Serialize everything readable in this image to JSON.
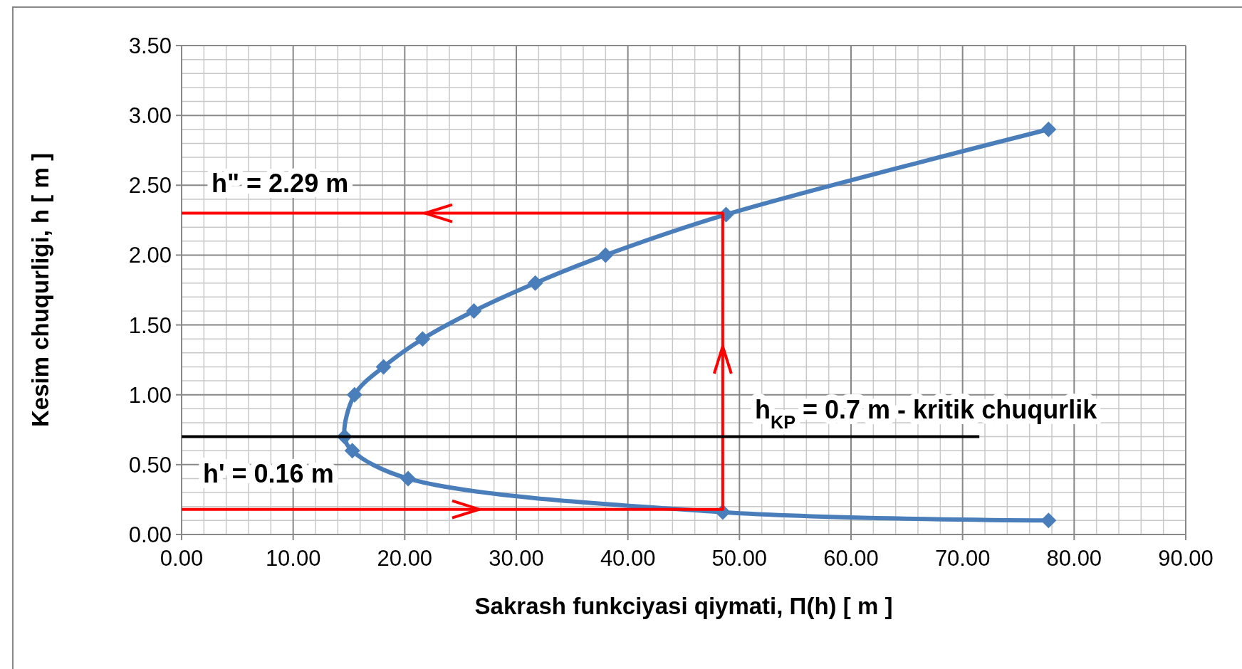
{
  "chart_data": {
    "type": "line",
    "xlabel": "Sakrash funkciyasi qiymati, Π(h) [ m ]",
    "ylabel": "Kesim chuqurligi, h [ m ]",
    "xlim": [
      0,
      90
    ],
    "ylim": [
      0,
      3.5
    ],
    "xticks": [
      {
        "value": 0,
        "label": "0.00"
      },
      {
        "value": 10,
        "label": "10.00"
      },
      {
        "value": 20,
        "label": "20.00"
      },
      {
        "value": 30,
        "label": "30.00"
      },
      {
        "value": 40,
        "label": "40.00"
      },
      {
        "value": 50,
        "label": "50.00"
      },
      {
        "value": 60,
        "label": "60.00"
      },
      {
        "value": 70,
        "label": "70.00"
      },
      {
        "value": 80,
        "label": "80.00"
      },
      {
        "value": 90,
        "label": "90.00"
      }
    ],
    "yticks": [
      {
        "value": 0,
        "label": "0.00"
      },
      {
        "value": 0.5,
        "label": "0.50"
      },
      {
        "value": 1,
        "label": "1.00"
      },
      {
        "value": 1.5,
        "label": "1.50"
      },
      {
        "value": 2,
        "label": "2.00"
      },
      {
        "value": 2.5,
        "label": "2.50"
      },
      {
        "value": 3,
        "label": "3.00"
      },
      {
        "value": 3.5,
        "label": "3.50"
      }
    ],
    "grid": true,
    "series": [
      {
        "color": "#4a7ebb",
        "marker": "diamond",
        "x": [
          77.7,
          48.8,
          38.0,
          31.7,
          26.2,
          21.6,
          18.1,
          15.5,
          14.6,
          15.3,
          20.3,
          48.5,
          77.7
        ],
        "values": [
          2.9,
          2.29,
          2.0,
          1.8,
          1.6,
          1.4,
          1.2,
          1.0,
          0.7,
          0.6,
          0.4,
          0.16,
          0.1
        ]
      },
      {
        "color": "#ff0000",
        "marker": "none",
        "x": [
          0,
          48.5,
          48.5,
          0
        ],
        "values": [
          0.18,
          0.18,
          2.3,
          2.3
        ]
      },
      {
        "color": "#000000",
        "marker": "none",
        "x": [
          0,
          71.5
        ],
        "values": [
          0.7,
          0.7
        ]
      }
    ],
    "annotations": [
      "h\" = 2.29 m",
      "h' = 0.16 m",
      "h$_{KP}$ = 0.7 m  - kritik chuqurlik"
    ]
  }
}
